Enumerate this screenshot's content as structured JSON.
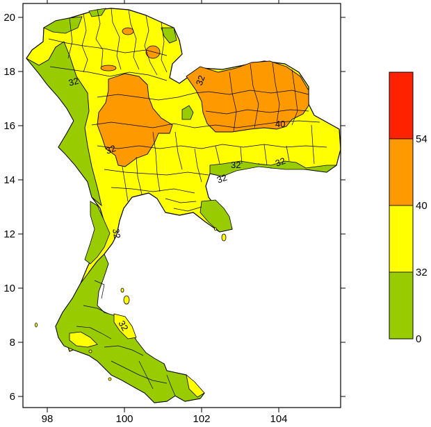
{
  "map": {
    "x_ticks": [
      "98",
      "100",
      "102",
      "104"
    ],
    "y_ticks": [
      "20",
      "18",
      "16",
      "14",
      "12",
      "10",
      "8",
      "6"
    ],
    "lon_range": [
      97.4,
      105.7
    ],
    "lat_range": [
      5.5,
      20.5
    ],
    "contour_labels": [
      "32",
      "32",
      "32",
      "40",
      "32",
      "32",
      "32"
    ],
    "zone_colors": {
      "green": "#99cc00",
      "yellow": "#ffff00",
      "orange": "#ff9900",
      "red": "#ff2200"
    }
  },
  "legend": {
    "labels": [
      "54",
      "40",
      "32",
      "0"
    ],
    "bands": [
      {
        "from": 54,
        "color": "#ff2200"
      },
      {
        "from": 40,
        "to": 54,
        "color": "#ff9900"
      },
      {
        "from": 32,
        "to": 40,
        "color": "#ffff00"
      },
      {
        "from": 0,
        "to": 32,
        "color": "#99cc00"
      }
    ]
  }
}
